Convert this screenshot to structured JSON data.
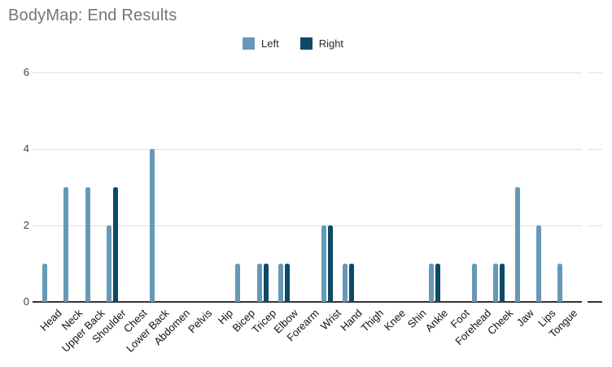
{
  "title": "BodyMap: End Results",
  "legend": {
    "items": [
      {
        "label": "Left",
        "color": "#6699B8"
      },
      {
        "label": "Right",
        "color": "#0D4A68"
      }
    ]
  },
  "y_axis": {
    "tick_labels": [
      "0",
      "2",
      "4",
      "6"
    ]
  },
  "chart_data": {
    "type": "bar",
    "title": "BodyMap: End Results",
    "categories": [
      "Head",
      "Neck",
      "Upper Back",
      "Shoulder",
      "Chest",
      "Lower Back",
      "Abdomen",
      "Pelvis",
      "Hip",
      "Bicep",
      "Tricep",
      "Elbow",
      "Forearm",
      "Wrist",
      "Hand",
      "Thigh",
      "Knee",
      "Shin",
      "Ankle",
      "Foot",
      "Forehead",
      "Cheek",
      "Jaw",
      "Lips",
      "Tongue"
    ],
    "series": [
      {
        "name": "Left",
        "color": "#6699B8",
        "values": [
          1,
          3,
          3,
          2,
          0,
          4,
          0,
          0,
          0,
          1,
          1,
          1,
          0,
          2,
          1,
          0,
          0,
          0,
          1,
          0,
          1,
          1,
          3,
          2,
          1
        ]
      },
      {
        "name": "Right",
        "color": "#0D4A68",
        "values": [
          0,
          0,
          0,
          3,
          0,
          0,
          0,
          0,
          0,
          0,
          1,
          1,
          0,
          2,
          1,
          0,
          0,
          0,
          1,
          0,
          0,
          1,
          0,
          0,
          0
        ]
      }
    ],
    "xlabel": "",
    "ylabel": "",
    "ylim": [
      0,
      6
    ],
    "yticks": [
      0,
      2,
      4,
      6
    ],
    "grid": true,
    "legend_position": "top",
    "x_tick_rotation_deg": 45
  }
}
